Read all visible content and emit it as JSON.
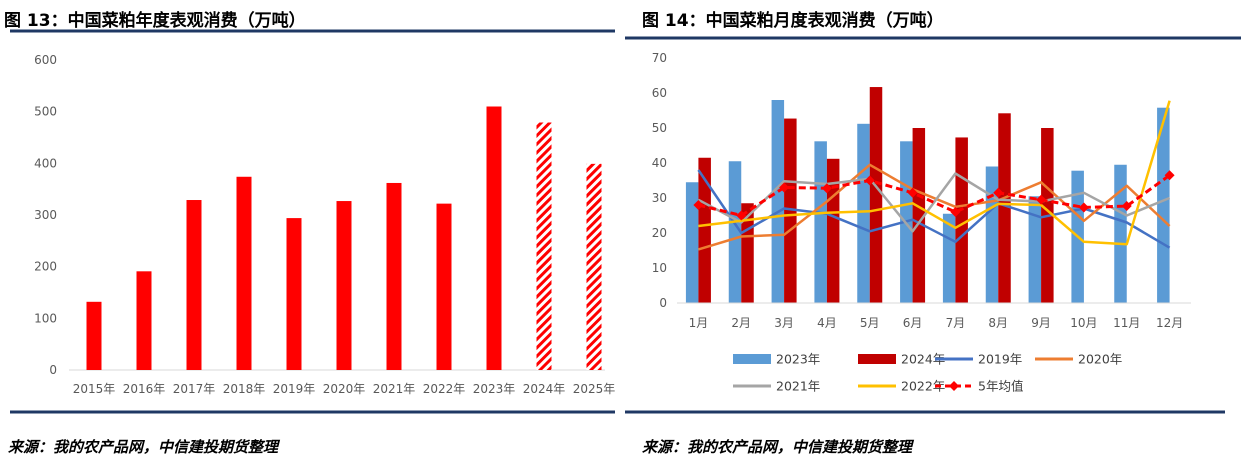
{
  "left": {
    "title": "图 13：中国菜粕年度表观消费（万吨）",
    "source": "来源：我的农产品网，中信建投期货整理"
  },
  "right": {
    "title": "图 14：中国菜粕月度表观消费（万吨）",
    "source": "来源：我的农产品网，中信建投期货整理"
  },
  "colors": {
    "rule": "#1f3864",
    "bar_red": "#ff0000",
    "bar_blue": "#5b9bd5",
    "bar_darkred": "#c00000",
    "line_2019": "#4472c4",
    "line_2020": "#ed7d31",
    "line_2021": "#a5a5a5",
    "line_2022": "#ffc000",
    "avg": "#ff0000",
    "axis": "#d9d9d9"
  },
  "chart_data": [
    {
      "type": "bar",
      "title": "中国菜粕年度表观消费（万吨）",
      "categories": [
        "2015年",
        "2016年",
        "2017年",
        "2018年",
        "2019年",
        "2020年",
        "2021年",
        "2022年",
        "2023年",
        "2024年",
        "2025年"
      ],
      "values": [
        132,
        191,
        329,
        374,
        294,
        327,
        362,
        322,
        510,
        479,
        399
      ],
      "hatched": [
        false,
        false,
        false,
        false,
        false,
        false,
        false,
        false,
        false,
        true,
        true
      ],
      "ylim": [
        0,
        600
      ],
      "yticks": [
        0,
        100,
        200,
        300,
        400,
        500,
        600
      ],
      "grid": false,
      "legend": "none"
    },
    {
      "type": "bar+line",
      "title": "中国菜粕月度表观消费（万吨）",
      "categories": [
        "1月",
        "2月",
        "3月",
        "4月",
        "5月",
        "6月",
        "7月",
        "8月",
        "9月",
        "10月",
        "11月",
        "12月"
      ],
      "ylim": [
        0,
        70
      ],
      "yticks": [
        0,
        10,
        20,
        30,
        40,
        50,
        60,
        70
      ],
      "grid": false,
      "legend": "bottom",
      "bar_series": [
        {
          "name": "2023年",
          "color": "#5b9bd5",
          "values": [
            34.5,
            40.5,
            58,
            46.2,
            51.2,
            46.2,
            25.5,
            39,
            30.5,
            37.8,
            39.5,
            55.8
          ]
        },
        {
          "name": "2024年",
          "color": "#c00000",
          "values": [
            41.5,
            28.5,
            52.7,
            41.2,
            61.7,
            50,
            47.3,
            54.2,
            50
          ]
        }
      ],
      "line_series": [
        {
          "name": "2019年",
          "color": "#4472c4",
          "values": [
            38,
            20,
            27,
            25.5,
            20.5,
            23.8,
            17.5,
            28.5,
            24.5,
            27,
            23,
            15.8
          ]
        },
        {
          "name": "2020年",
          "color": "#ed7d31",
          "values": [
            15.3,
            19,
            19.5,
            29,
            39.5,
            32.5,
            27.5,
            29.3,
            34.5,
            23.5,
            33.5,
            22
          ]
        },
        {
          "name": "2021年",
          "color": "#a5a5a5",
          "values": [
            29.5,
            23,
            34.8,
            34,
            35.5,
            20.5,
            37,
            29.5,
            29,
            31.5,
            25,
            30
          ]
        },
        {
          "name": "2022年",
          "color": "#ffc000",
          "values": [
            22,
            23.5,
            25,
            25.8,
            26.2,
            28.5,
            21.5,
            28.3,
            28,
            17.5,
            16.8,
            57.8
          ]
        },
        {
          "name": "5年均值",
          "color": "#ff0000",
          "dashed": true,
          "markers": "diamond",
          "values": [
            28,
            25,
            33,
            32.8,
            35,
            31.5,
            26,
            31.5,
            29.5,
            27.3,
            27.7,
            36.5
          ]
        }
      ]
    }
  ]
}
